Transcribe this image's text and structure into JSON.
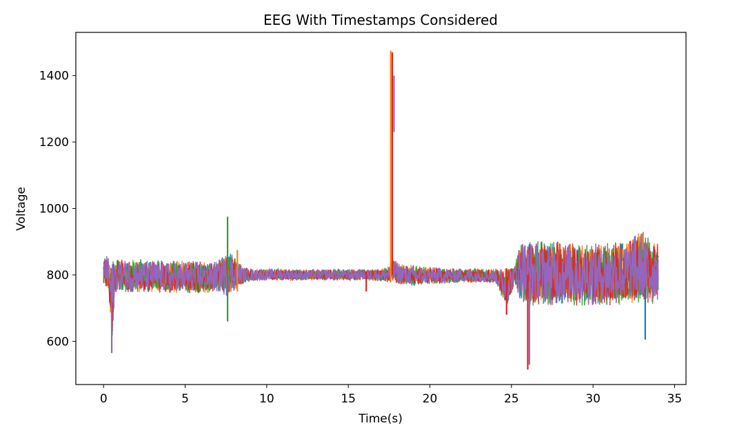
{
  "chart_data": {
    "type": "line",
    "title": "EEG With Timestamps Considered",
    "xlabel": "Time(s)",
    "ylabel": "Voltage",
    "xlim": [
      -1.7,
      35.7
    ],
    "ylim": [
      470,
      1530
    ],
    "xticks": [
      0,
      5,
      10,
      15,
      20,
      25,
      30,
      35
    ],
    "yticks": [
      600,
      800,
      1000,
      1200,
      1400
    ],
    "grid": false,
    "legend": "none",
    "series_colors": [
      "#1f77b4",
      "#ff7f0e",
      "#2ca02c",
      "#d62728",
      "#9467bd"
    ],
    "envelope": {
      "x": [
        0.0,
        0.3,
        0.5,
        0.7,
        1.5,
        3.0,
        5.0,
        7.0,
        7.5,
        7.8,
        8.5,
        9.0,
        10.0,
        12.0,
        14.0,
        16.0,
        17.0,
        17.5,
        17.8,
        18.2,
        19.0,
        20.0,
        22.0,
        24.0,
        24.7,
        25.2,
        25.6,
        26.0,
        28.0,
        30.0,
        32.0,
        33.0,
        33.5,
        34.0
      ],
      "high": [
        860,
        860,
        850,
        850,
        850,
        850,
        845,
        845,
        870,
        870,
        830,
        820,
        820,
        818,
        818,
        818,
        818,
        830,
        850,
        835,
        830,
        825,
        820,
        820,
        825,
        830,
        920,
        910,
        905,
        900,
        905,
        940,
        910,
        900
      ],
      "low": [
        760,
        755,
        580,
        745,
        745,
        745,
        740,
        745,
        730,
        740,
        770,
        780,
        782,
        782,
        782,
        782,
        780,
        775,
        775,
        770,
        765,
        770,
        775,
        775,
        700,
        770,
        710,
        700,
        705,
        700,
        705,
        710,
        700,
        720
      ]
    },
    "spikes": [
      {
        "x": 0.5,
        "y_min": 565,
        "y_max": 820,
        "color": "#9467bd"
      },
      {
        "x": 7.6,
        "y_min": 660,
        "y_max": 975,
        "color": "#2ca02c"
      },
      {
        "x": 8.2,
        "y_min": 750,
        "y_max": 875,
        "color": "#ff7f0e"
      },
      {
        "x": 16.1,
        "y_min": 750,
        "y_max": 810,
        "color": "#d62728"
      },
      {
        "x": 17.6,
        "y_min": 780,
        "y_max": 1475,
        "color": "#ff7f0e"
      },
      {
        "x": 17.7,
        "y_min": 800,
        "y_max": 1470,
        "color": "#d62728"
      },
      {
        "x": 17.8,
        "y_min": 1230,
        "y_max": 1400,
        "color": "#9467bd"
      },
      {
        "x": 24.7,
        "y_min": 680,
        "y_max": 820,
        "color": "#d62728"
      },
      {
        "x": 26.0,
        "y_min": 515,
        "y_max": 800,
        "color": "#d62728"
      },
      {
        "x": 26.1,
        "y_min": 530,
        "y_max": 780,
        "color": "#9467bd"
      },
      {
        "x": 33.2,
        "y_min": 605,
        "y_max": 760,
        "color": "#1f77b4"
      }
    ]
  }
}
